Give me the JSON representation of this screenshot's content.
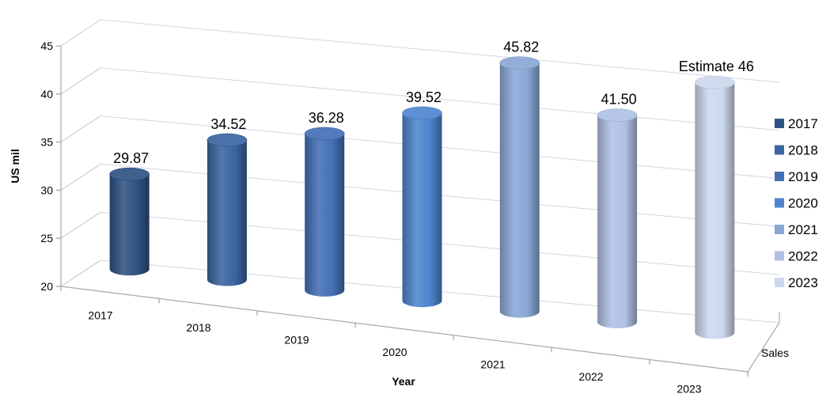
{
  "chart_data": {
    "type": "bar",
    "bar_shape": "cylinder-3d",
    "xlabel": "Year",
    "ylabel": "US mil",
    "depth_label": "Sales",
    "ylim": [
      20,
      45
    ],
    "yticks": [
      "20",
      "25",
      "30",
      "35",
      "40",
      "45"
    ],
    "grid": true,
    "legend_position": "right",
    "categories": [
      "2017",
      "2018",
      "2019",
      "2020",
      "2021",
      "2022",
      "2023"
    ],
    "values": [
      29.87,
      34.52,
      36.28,
      39.52,
      45.82,
      41.5,
      46
    ],
    "data_labels": [
      "29.87",
      "34.52",
      "36.28",
      "39.52",
      "45.82",
      "41.50",
      "Estimate 46"
    ],
    "colors": [
      "#2f5283",
      "#3a65a0",
      "#4470b5",
      "#4e85cf",
      "#8aa7d6",
      "#b0c1e4",
      "#ccd8ee"
    ],
    "legend": [
      "2017",
      "2018",
      "2019",
      "2020",
      "2021",
      "2022",
      "2023"
    ]
  }
}
